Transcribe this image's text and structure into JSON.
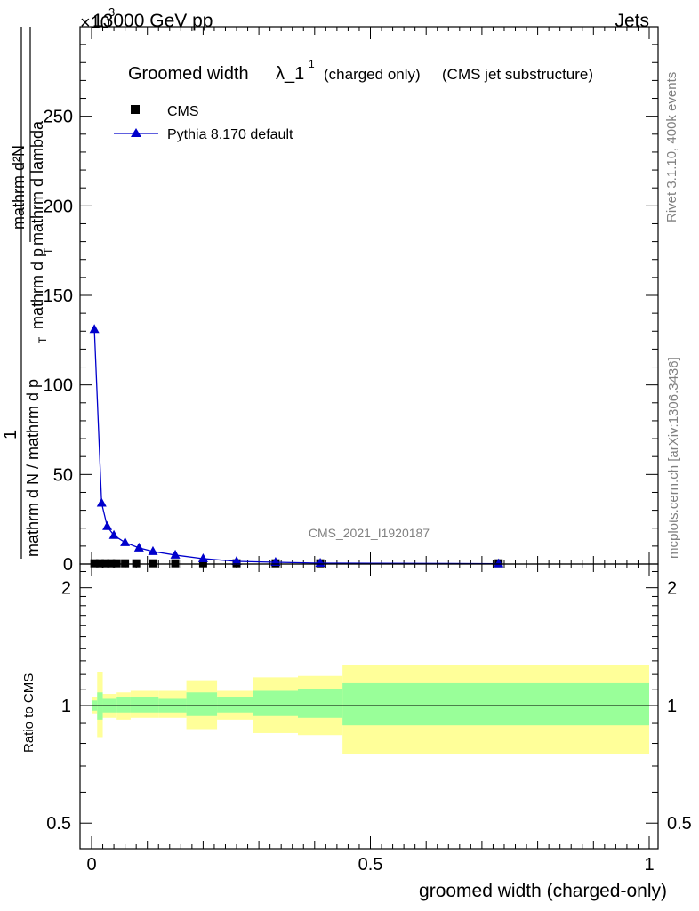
{
  "header": {
    "energy_label": "13000 GeV pp",
    "category": "Jets",
    "exponent_label": "×10",
    "exponent_power": "3"
  },
  "side_labels": {
    "rivet": "Rivet 3.1.10,  400k events",
    "mcplots": "mcplots.cern.ch [arXiv:1306.3436]"
  },
  "watermark": "CMS_2021_I1920187",
  "chart_data": [
    {
      "type": "line",
      "title": {
        "main": "Groomed width",
        "symbol": "λ_1",
        "superscript": "1",
        "sub_a": "(charged only)",
        "sub_b": "(CMS jet substructure)"
      },
      "ylabel": {
        "numerator_top": "mathrm d²N",
        "denominator_top": "mathrm d p",
        "denominator_top_sub": "T",
        "denominator_top_rest": " mathrm d lambda",
        "lhs_numerator": "1",
        "lhs_denominator": "mathrm d N / mathrm d p",
        "lhs_denominator_sub": "T"
      },
      "xlim": [
        0,
        1
      ],
      "ylim": [
        0,
        300
      ],
      "y_scale_factor": 1000,
      "yticks": [
        0,
        50,
        100,
        150,
        200,
        250
      ],
      "legend": {
        "placement": "top-left",
        "entries": [
          {
            "label": "CMS",
            "marker": "square",
            "color": "#000000"
          },
          {
            "label": "Pythia 8.170 default",
            "marker": "triangle",
            "color": "#0000cc"
          }
        ]
      },
      "series": [
        {
          "name": "CMS",
          "x": [
            0.005,
            0.015,
            0.025,
            0.035,
            0.045,
            0.06,
            0.08,
            0.11,
            0.15,
            0.2,
            0.26,
            0.33,
            0.41,
            0.73
          ],
          "y": [
            0.4,
            0.4,
            0.4,
            0.4,
            0.4,
            0.4,
            0.4,
            0.4,
            0.4,
            0.4,
            0.4,
            0.4,
            0.4,
            0.4
          ]
        },
        {
          "name": "Pythia 8.170 default",
          "x": [
            0.005,
            0.018,
            0.028,
            0.04,
            0.06,
            0.085,
            0.11,
            0.15,
            0.2,
            0.26,
            0.33,
            0.41,
            0.73
          ],
          "y": [
            131,
            34,
            21,
            16,
            12,
            9,
            7,
            5,
            3,
            1.5,
            1,
            0.5,
            0.2
          ]
        }
      ]
    },
    {
      "type": "area",
      "ylabel": "Ratio to CMS",
      "xlabel": "groomed width (charged-only)",
      "xlim": [
        0,
        1
      ],
      "ylim": [
        0.43,
        2.3
      ],
      "y_scale": "log",
      "yticks": [
        0.5,
        1,
        2
      ],
      "ytick_labels": [
        "0.5",
        "1",
        "2"
      ],
      "xticks": [
        0,
        0.5,
        1
      ],
      "xtick_labels": [
        "0",
        "0.5",
        "1"
      ],
      "reference_line": 1,
      "colors": {
        "stat_band": "#99ff99",
        "total_band": "#ffff99",
        "line": "#000000"
      },
      "bins": [
        {
          "x0": 0.0,
          "x1": 0.01,
          "stat": [
            0.97,
            1.03
          ],
          "total": [
            0.95,
            1.05
          ]
        },
        {
          "x0": 0.01,
          "x1": 0.02,
          "stat": [
            0.92,
            1.08
          ],
          "total": [
            0.83,
            1.22
          ]
        },
        {
          "x0": 0.02,
          "x1": 0.045,
          "stat": [
            0.96,
            1.04
          ],
          "total": [
            0.93,
            1.07
          ]
        },
        {
          "x0": 0.045,
          "x1": 0.07,
          "stat": [
            0.96,
            1.05
          ],
          "total": [
            0.92,
            1.08
          ]
        },
        {
          "x0": 0.07,
          "x1": 0.12,
          "stat": [
            0.96,
            1.05
          ],
          "total": [
            0.93,
            1.09
          ]
        },
        {
          "x0": 0.12,
          "x1": 0.17,
          "stat": [
            0.96,
            1.04
          ],
          "total": [
            0.93,
            1.09
          ]
        },
        {
          "x0": 0.17,
          "x1": 0.225,
          "stat": [
            0.94,
            1.08
          ],
          "total": [
            0.87,
            1.16
          ]
        },
        {
          "x0": 0.225,
          "x1": 0.29,
          "stat": [
            0.96,
            1.05
          ],
          "total": [
            0.92,
            1.09
          ]
        },
        {
          "x0": 0.29,
          "x1": 0.37,
          "stat": [
            0.94,
            1.09
          ],
          "total": [
            0.85,
            1.18
          ]
        },
        {
          "x0": 0.37,
          "x1": 0.45,
          "stat": [
            0.93,
            1.1
          ],
          "total": [
            0.84,
            1.19
          ]
        },
        {
          "x0": 0.45,
          "x1": 1.0,
          "stat": [
            0.89,
            1.14
          ],
          "total": [
            0.75,
            1.27
          ]
        }
      ]
    }
  ]
}
